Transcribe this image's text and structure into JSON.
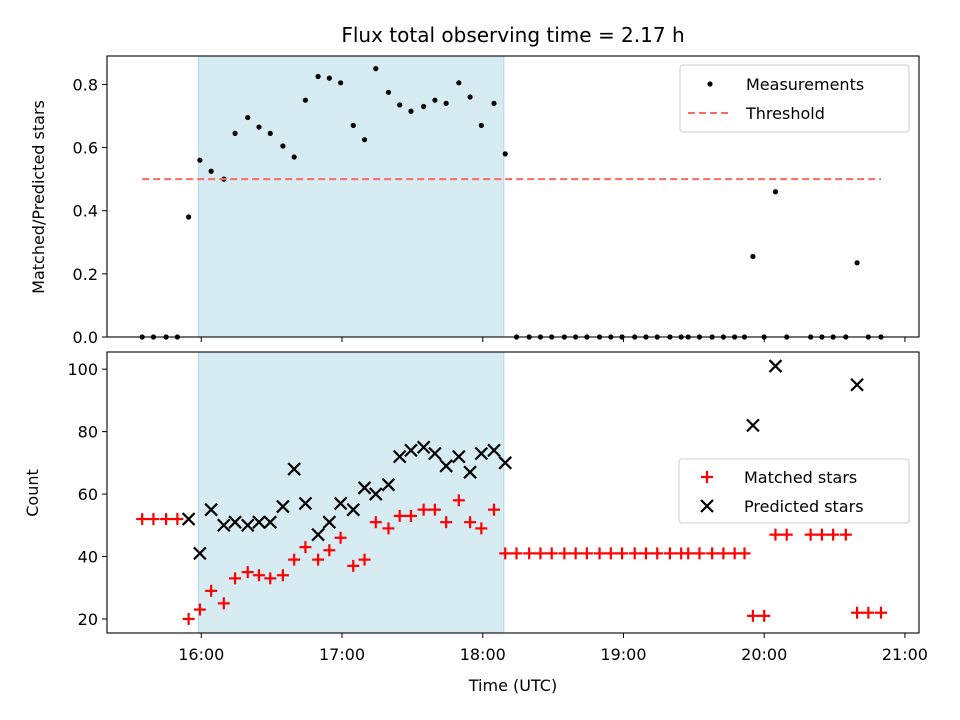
{
  "chart_data": {
    "title": "Flux total observing time = 2.17 h",
    "xlabel": "Time (UTC)",
    "x_ticks": [
      "16:00",
      "17:00",
      "18:00",
      "19:00",
      "20:00",
      "21:00"
    ],
    "x_tick_hours": [
      16,
      17,
      18,
      19,
      20,
      21
    ],
    "xlim_hours": [
      15.33,
      21.1
    ],
    "shaded_interval_hours": [
      15.98,
      18.15
    ],
    "shade_color": "#add8e6",
    "panels": [
      {
        "type": "scatter",
        "ylabel": "Matched/Predicted stars",
        "ylim": [
          0,
          0.89
        ],
        "y_ticks": [
          0.0,
          0.2,
          0.4,
          0.6,
          0.8
        ],
        "y_tick_labels": [
          "0.0",
          "0.2",
          "0.4",
          "0.6",
          "0.8"
        ],
        "legend_position": "top-right",
        "series": [
          {
            "name": "Measurements",
            "marker": "dot",
            "color": "#000000",
            "x_hours": [
              15.58,
              15.66,
              15.75,
              15.83,
              15.91,
              15.99,
              16.07,
              16.16,
              16.24,
              16.33,
              16.41,
              16.49,
              16.58,
              16.66,
              16.74,
              16.83,
              16.91,
              16.99,
              17.08,
              17.16,
              17.24,
              17.33,
              17.41,
              17.49,
              17.58,
              17.66,
              17.74,
              17.83,
              17.91,
              17.99,
              18.08,
              18.16,
              18.24,
              18.33,
              18.41,
              18.49,
              18.58,
              18.66,
              18.74,
              18.83,
              18.91,
              18.99,
              19.08,
              19.16,
              19.24,
              19.33,
              19.41,
              19.46,
              19.54,
              19.63,
              19.71,
              19.79,
              19.86,
              19.92,
              20.0,
              20.08,
              20.16,
              20.33,
              20.41,
              20.49,
              20.58,
              20.66,
              20.74,
              20.83
            ],
            "y": [
              0,
              0,
              0,
              0,
              0.38,
              0.56,
              0.525,
              0.5,
              0.645,
              0.695,
              0.665,
              0.645,
              0.605,
              0.57,
              0.75,
              0.825,
              0.82,
              0.805,
              0.67,
              0.625,
              0.85,
              0.775,
              0.735,
              0.715,
              0.73,
              0.75,
              0.74,
              0.805,
              0.76,
              0.67,
              0.74,
              0.58,
              0,
              0,
              0,
              0,
              0,
              0,
              0,
              0,
              0,
              0,
              0,
              0,
              0,
              0,
              0,
              0,
              0,
              0,
              0,
              0,
              0,
              0.255,
              0,
              0.46,
              0,
              0,
              0,
              0,
              0,
              0.235,
              0,
              0
            ]
          },
          {
            "name": "Threshold",
            "marker": "dashed-line",
            "color": "#ff6666",
            "x_hours": [
              15.58,
              20.83
            ],
            "y": [
              0.5,
              0.5
            ]
          }
        ]
      },
      {
        "type": "scatter",
        "ylabel": "Count",
        "ylim": [
          15.5,
          105.5
        ],
        "y_ticks": [
          20,
          40,
          60,
          80,
          100
        ],
        "y_tick_labels": [
          "20",
          "40",
          "60",
          "80",
          "100"
        ],
        "legend_position": "center-right",
        "series": [
          {
            "name": "Matched stars",
            "marker": "plus",
            "color": "#ff0000",
            "x_hours": [
              15.58,
              15.66,
              15.75,
              15.83,
              15.91,
              15.99,
              16.07,
              16.16,
              16.24,
              16.33,
              16.41,
              16.49,
              16.58,
              16.66,
              16.74,
              16.83,
              16.91,
              16.99,
              17.08,
              17.16,
              17.24,
              17.33,
              17.41,
              17.49,
              17.58,
              17.66,
              17.74,
              17.83,
              17.91,
              17.99,
              18.08,
              18.16,
              18.24,
              18.33,
              18.41,
              18.49,
              18.58,
              18.66,
              18.74,
              18.83,
              18.91,
              18.99,
              19.08,
              19.16,
              19.24,
              19.33,
              19.41,
              19.46,
              19.54,
              19.63,
              19.71,
              19.79,
              19.86,
              19.92,
              20.0,
              20.08,
              20.16,
              20.33,
              20.41,
              20.49,
              20.58,
              20.66,
              20.74,
              20.83
            ],
            "y": [
              52,
              52,
              52,
              52,
              20,
              23,
              29,
              25,
              33,
              35,
              34,
              33,
              34,
              39,
              43,
              39,
              42,
              46,
              37,
              39,
              51,
              49,
              53,
              53,
              55,
              55,
              51,
              58,
              51,
              49,
              55,
              41,
              41,
              41,
              41,
              41,
              41,
              41,
              41,
              41,
              41,
              41,
              41,
              41,
              41,
              41,
              41,
              41,
              41,
              41,
              41,
              41,
              41,
              21,
              21,
              47,
              47,
              47,
              47,
              47,
              47,
              22,
              22,
              22
            ]
          },
          {
            "name": "Predicted stars",
            "marker": "x",
            "color": "#000000",
            "x_hours": [
              15.91,
              15.99,
              16.07,
              16.16,
              16.24,
              16.33,
              16.41,
              16.49,
              16.58,
              16.66,
              16.74,
              16.83,
              16.91,
              16.99,
              17.08,
              17.16,
              17.24,
              17.33,
              17.41,
              17.49,
              17.58,
              17.66,
              17.74,
              17.83,
              17.91,
              17.99,
              18.08,
              18.16,
              19.92,
              20.08,
              20.66
            ],
            "y": [
              52,
              41,
              55,
              50,
              51,
              50,
              51,
              51,
              56,
              68,
              57,
              47,
              51,
              57,
              55,
              62,
              60,
              63,
              72,
              74,
              75,
              73,
              69,
              72,
              67,
              73,
              74,
              70,
              82,
              101,
              95
            ]
          }
        ]
      }
    ]
  }
}
